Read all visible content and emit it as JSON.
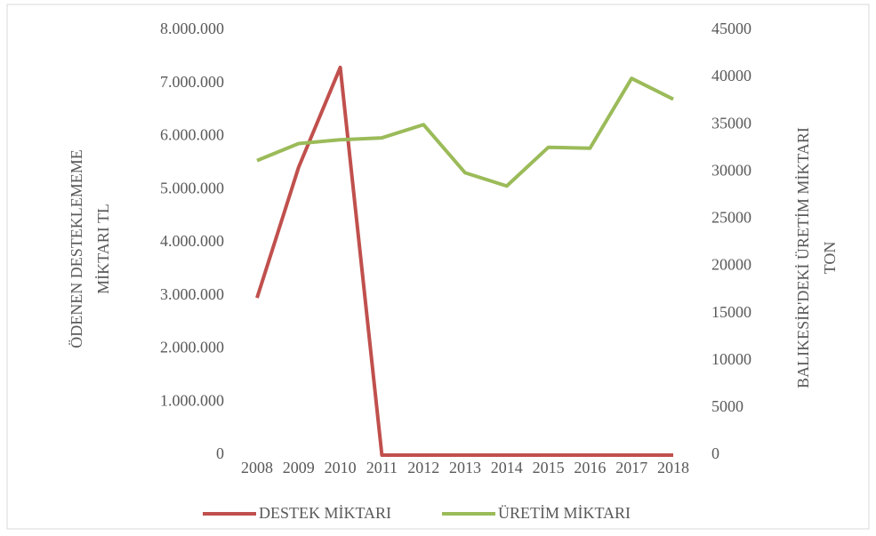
{
  "chart_data": {
    "type": "line",
    "categories": [
      "2008",
      "2009",
      "2010",
      "2011",
      "2012",
      "2013",
      "2014",
      "2015",
      "2016",
      "2017",
      "2018"
    ],
    "series": [
      {
        "name": "DESTEK MİKTARI",
        "color": "#c0504d",
        "axis": "y",
        "values": [
          2960000,
          5420000,
          7300000,
          0,
          0,
          0,
          0,
          0,
          0,
          0,
          0
        ]
      },
      {
        "name": "ÜRETİM MİKTARI",
        "color": "#9bbb59",
        "axis": "y2",
        "values": [
          31200,
          33000,
          33400,
          33600,
          35000,
          29900,
          28500,
          32600,
          32500,
          39900,
          37700
        ]
      }
    ],
    "ylabel": [
      "ÖDENEN DESTEKLEMEME",
      "MİKTARI TL"
    ],
    "y2label": [
      "BALIKESİR'DEKİ ÜRETİM MİKTARI",
      "TON"
    ],
    "ylim": [
      0,
      8000000
    ],
    "yticks": [
      0,
      {
        "value": 1000000,
        "label": "1.000.000"
      },
      {
        "value": 2000000,
        "label": "2.000.000"
      },
      {
        "value": 3000000,
        "label": "3.000.000"
      },
      {
        "value": 4000000,
        "label": "4.000.000"
      },
      {
        "value": 5000000,
        "label": "5.000.000"
      },
      {
        "value": 6000000,
        "label": "6.000.000"
      },
      {
        "value": 7000000,
        "label": "7.000.000"
      },
      {
        "value": 8000000,
        "label": "8.000.000"
      }
    ],
    "y2lim": [
      0,
      45000
    ],
    "y2ticks": [
      0,
      5000,
      10000,
      15000,
      20000,
      25000,
      30000,
      35000,
      40000,
      45000
    ],
    "legend": "bottom"
  }
}
